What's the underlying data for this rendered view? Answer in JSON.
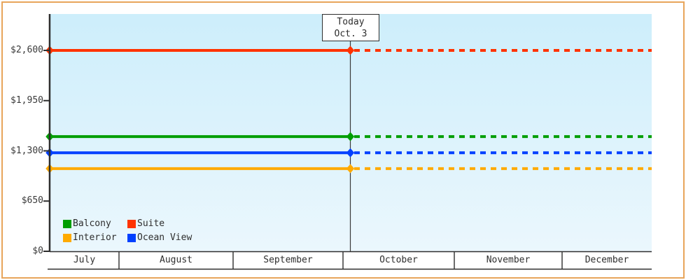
{
  "colors": {
    "frame_border": "#e8a55b",
    "plot_bg_top": "#cdeefb",
    "plot_bg_bottom": "#ebf7fd",
    "axis": "#2e2e2e",
    "text": "#3a3a3a",
    "today_line": "#3a3a3a",
    "flag_bg": "#ffffff"
  },
  "today_flag": {
    "line1": "Today",
    "line2": "Oct. 3"
  },
  "y_axis": {
    "ticks": [
      0,
      650,
      1300,
      1950,
      2600
    ],
    "tick_labels": [
      "$0",
      "$650",
      "$1,300",
      "$1,950",
      "$2,600"
    ]
  },
  "x_axis": {
    "months": [
      "July",
      "August",
      "September",
      "October",
      "November",
      "December"
    ]
  },
  "legend": {
    "items": [
      {
        "label": "Balcony",
        "color": "#009e00"
      },
      {
        "label": "Suite",
        "color": "#ff3300"
      },
      {
        "label": "Interior",
        "color": "#ffaa00"
      },
      {
        "label": "Ocean View",
        "color": "#0040ff"
      }
    ]
  },
  "chart_data": {
    "type": "line",
    "title": "",
    "x_categories": [
      "July",
      "August",
      "September",
      "October",
      "November",
      "December"
    ],
    "today_marker": {
      "label": "Today",
      "date": "Oct. 3"
    },
    "ylim": [
      0,
      2600
    ],
    "y_ticks": [
      0,
      650,
      1300,
      1950,
      2600
    ],
    "y_tick_labels": [
      "$0",
      "$650",
      "$1,300",
      "$1,950",
      "$2,600"
    ],
    "grid": false,
    "legend_position": "inside bottom-left",
    "line_style": "flat constant price per category; solid line from chart start to today, dashed projection from today to chart end; diamond markers at axis and at today",
    "series": [
      {
        "name": "Suite",
        "color": "#ff3300",
        "value": 2600
      },
      {
        "name": "Balcony",
        "color": "#009e00",
        "value": 1485
      },
      {
        "name": "Ocean View",
        "color": "#0040ff",
        "value": 1275
      },
      {
        "name": "Interior",
        "color": "#ffaa00",
        "value": 1070
      }
    ]
  }
}
